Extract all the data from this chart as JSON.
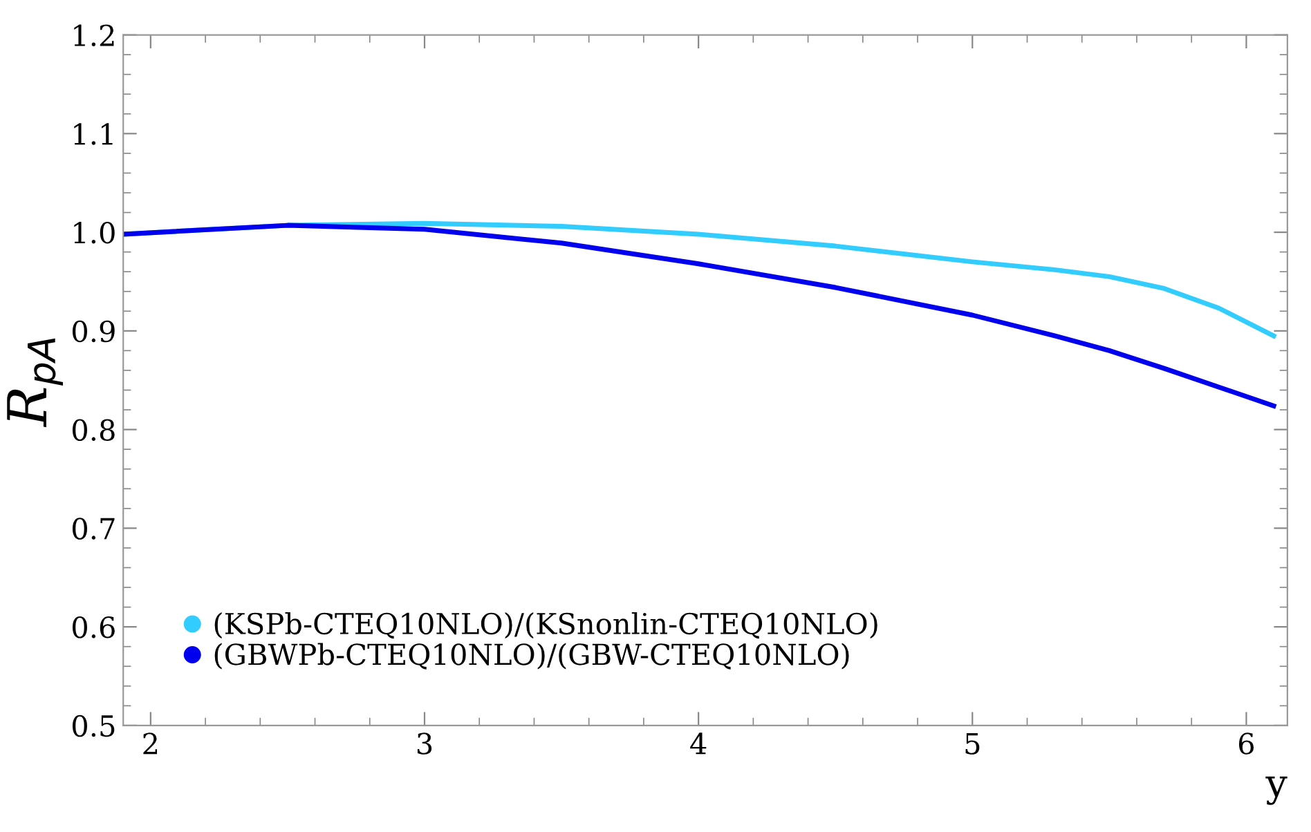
{
  "chart_data": {
    "type": "line",
    "xlabel": "y",
    "ylabel": "R$_{pA}$",
    "xlim": [
      1.9,
      6.15
    ],
    "ylim": [
      0.5,
      1.2
    ],
    "xticks": [
      2,
      3,
      4,
      5,
      6
    ],
    "yticks": [
      {
        "value": 0.5,
        "label": "0.5"
      },
      {
        "value": 0.6,
        "label": "0.6"
      },
      {
        "value": 0.7,
        "label": "0.7"
      },
      {
        "value": 0.8,
        "label": "0.8"
      },
      {
        "value": 0.9,
        "label": "0.9"
      },
      {
        "value": 1.0,
        "label": "1.0"
      },
      {
        "value": 1.1,
        "label": "1.1"
      },
      {
        "value": 1.2,
        "label": "1.2"
      }
    ],
    "grid": false,
    "legend": "bottom left",
    "marker": "none",
    "line_style": "solid",
    "series": [
      {
        "name": "(KSPb-CTEQ10NLO)/(KSnonlin-CTEQ10NLO)",
        "color": "#33ccff",
        "x": [
          1.9,
          2.5,
          3,
          3.5,
          4,
          4.5,
          5,
          5.3,
          5.5,
          5.7,
          5.9,
          6.1
        ],
        "values": [
          0.998,
          1.007,
          1.009,
          1.006,
          0.998,
          0.986,
          0.97,
          0.962,
          0.955,
          0.943,
          0.923,
          0.895
        ]
      },
      {
        "name": "(GBWPb-CTEQ10NLO)/(GBW-CTEQ10NLO)",
        "color": "#0000ee",
        "x": [
          1.9,
          2.5,
          3,
          3.5,
          4,
          4.5,
          5,
          5.3,
          5.5,
          5.7,
          5.9,
          6.1
        ],
        "values": [
          0.998,
          1.007,
          1.003,
          0.989,
          0.968,
          0.944,
          0.916,
          0.895,
          0.88,
          0.862,
          0.843,
          0.824
        ]
      }
    ]
  }
}
